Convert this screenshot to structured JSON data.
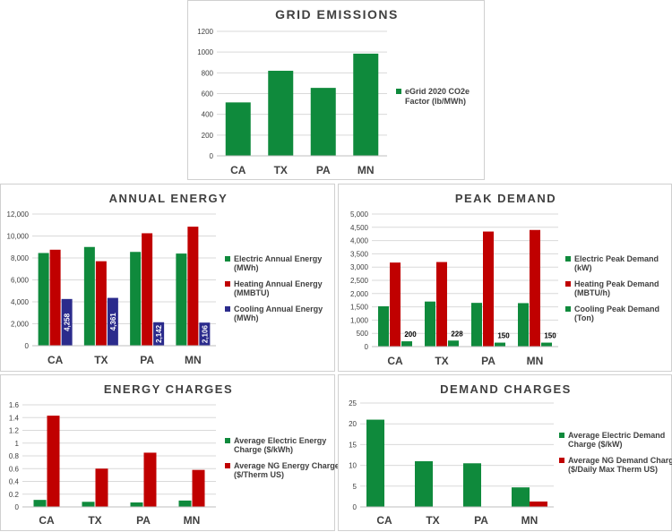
{
  "chart_data": [
    {
      "id": "grid",
      "type": "bar",
      "title": "GRID EMISSIONS",
      "categories": [
        "CA",
        "TX",
        "PA",
        "MN"
      ],
      "ylim": [
        0,
        1200
      ],
      "yticks": [
        "0",
        "200",
        "400",
        "600",
        "800",
        "1000",
        "1200"
      ],
      "grid": true,
      "legend_position": "right",
      "series": [
        {
          "name": "eGrid 2020 CO2e Factor (lb/MWh)",
          "color": "#0f8a3c",
          "values": [
            515,
            820,
            655,
            985
          ],
          "labels": null
        }
      ]
    },
    {
      "id": "energy",
      "type": "bar",
      "title": "ANNUAL ENERGY",
      "categories": [
        "CA",
        "TX",
        "PA",
        "MN"
      ],
      "ylim": [
        0,
        12000
      ],
      "yticks": [
        "0",
        "2,000",
        "4,000",
        "6,000",
        "8,000",
        "10,000",
        "12,000"
      ],
      "grid": true,
      "legend_position": "right",
      "series": [
        {
          "name": "Electric Annual Energy (MWh)",
          "color": "#0f8a3c",
          "values": [
            8450,
            9000,
            8550,
            8400
          ],
          "labels": null
        },
        {
          "name": "Heating Annual Energy (MMBTU)",
          "color": "#c00000",
          "values": [
            8750,
            7700,
            10250,
            10850
          ],
          "labels": null
        },
        {
          "name": "Cooling Annual Energy (MWh)",
          "color": "#2b2b8c",
          "values": [
            4258,
            4361,
            2142,
            2106
          ],
          "labels": [
            "4,258",
            "4,361",
            "2,142",
            "2,106"
          ]
        }
      ]
    },
    {
      "id": "peak",
      "type": "bar",
      "title": "PEAK DEMAND",
      "categories": [
        "CA",
        "TX",
        "PA",
        "MN"
      ],
      "ylim": [
        0,
        5000
      ],
      "yticks": [
        "0",
        "500",
        "1,000",
        "1,500",
        "2,000",
        "2,500",
        "3,000",
        "3,500",
        "4,000",
        "4,500",
        "5,000"
      ],
      "grid": true,
      "legend_position": "right",
      "series": [
        {
          "name": "Electric Peak Demand (kW)",
          "color": "#0f8a3c",
          "values": [
            1520,
            1700,
            1650,
            1640
          ],
          "labels": null
        },
        {
          "name": "Heating Peak Demand (MBTU/h)",
          "color": "#c00000",
          "values": [
            3170,
            3190,
            4340,
            4400
          ],
          "labels": null
        },
        {
          "name": "Cooling Peak Demand (Ton)",
          "color": "#0f8a3c",
          "values": [
            200,
            228,
            150,
            150
          ],
          "labels": [
            "200",
            "228",
            "150",
            "150"
          ]
        }
      ]
    },
    {
      "id": "echarges",
      "type": "bar",
      "title": "ENERGY CHARGES",
      "categories": [
        "CA",
        "TX",
        "PA",
        "MN"
      ],
      "ylim": [
        0,
        1.6
      ],
      "yticks": [
        "0",
        "0.2",
        "0.4",
        "0.6",
        "0.8",
        "1",
        "1.2",
        "1.4",
        "1.6"
      ],
      "grid": true,
      "legend_position": "right",
      "series": [
        {
          "name": "Average Electric Energy Charge ($/kWh)",
          "color": "#0f8a3c",
          "values": [
            0.11,
            0.08,
            0.07,
            0.1
          ],
          "labels": null
        },
        {
          "name": "Average NG Energy Charge ($/Therm US)",
          "color": "#c00000",
          "values": [
            1.43,
            0.6,
            0.85,
            0.58
          ],
          "labels": null
        }
      ]
    },
    {
      "id": "dcharges",
      "type": "bar",
      "title": "DEMAND CHARGES",
      "categories": [
        "CA",
        "TX",
        "PA",
        "MN"
      ],
      "ylim": [
        0,
        25
      ],
      "yticks": [
        "0",
        "5",
        "10",
        "15",
        "20",
        "25"
      ],
      "grid": true,
      "legend_position": "right",
      "series": [
        {
          "name": "Average Electric Demand Charge ($/kW)",
          "color": "#0f8a3c",
          "values": [
            21,
            11,
            10.5,
            4.7
          ],
          "labels": null
        },
        {
          "name": "Average NG Demand Charge ($/Daily Max Therm US)",
          "color": "#c00000",
          "values": [
            0,
            0,
            0,
            1.3
          ],
          "labels": null
        }
      ]
    }
  ]
}
